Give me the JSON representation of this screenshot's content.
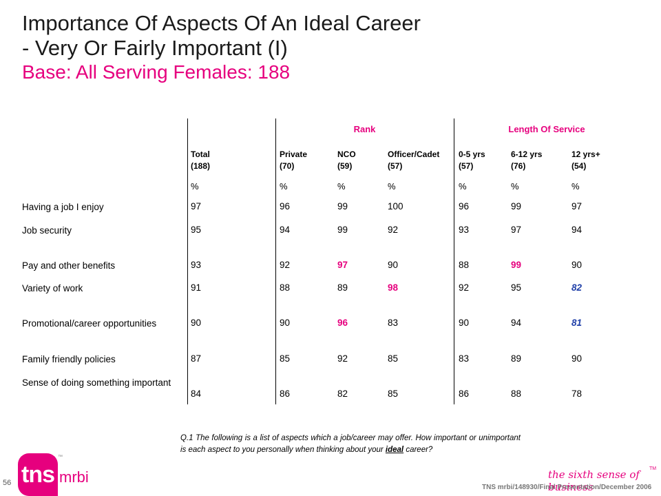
{
  "title": {
    "line1": "Importance Of Aspects Of An Ideal Career",
    "line2": "- Very Or Fairly Important (I)",
    "base": "Base:  All Serving Females:  188"
  },
  "table": {
    "group_rank": "Rank",
    "group_los": "Length Of Service",
    "columns": [
      {
        "line1": "Total",
        "line2": "(188)"
      },
      {
        "line1": "Private",
        "line2": "(70)"
      },
      {
        "line1": "NCO",
        "line2": "(59)"
      },
      {
        "line1": "Officer/Cadet",
        "line2": "(57)"
      },
      {
        "line1": "0-5 yrs",
        "line2": "(57)"
      },
      {
        "line1": "6-12 yrs",
        "line2": "(76)"
      },
      {
        "line1": "12 yrs+",
        "line2": "(54)"
      }
    ],
    "pct_symbol": "%",
    "rows": [
      {
        "label": "Having a job I enjoy",
        "values": [
          "97",
          "96",
          "99",
          "100",
          "96",
          "99",
          "97"
        ],
        "highlight": [
          "",
          "",
          "",
          "",
          "",
          "",
          ""
        ]
      },
      {
        "label": "Job security",
        "values": [
          "95",
          "94",
          "99",
          "92",
          "93",
          "97",
          "94"
        ],
        "highlight": [
          "",
          "",
          "",
          "",
          "",
          "",
          ""
        ]
      },
      {
        "label": "Pay and other benefits",
        "values": [
          "93",
          "92",
          "97",
          "90",
          "88",
          "99",
          "90"
        ],
        "highlight": [
          "",
          "",
          "pink",
          "",
          "",
          "pink",
          ""
        ]
      },
      {
        "label": "Variety of work",
        "values": [
          "91",
          "88",
          "89",
          "98",
          "92",
          "95",
          "82"
        ],
        "highlight": [
          "",
          "",
          "",
          "pink",
          "",
          "",
          "blue"
        ]
      },
      {
        "label": "Promotional/career opportunities",
        "values": [
          "90",
          "90",
          "96",
          "83",
          "90",
          "94",
          "81"
        ],
        "highlight": [
          "",
          "",
          "pink",
          "",
          "",
          "",
          "blue"
        ]
      },
      {
        "label": "Family friendly policies",
        "values": [
          "87",
          "85",
          "92",
          "85",
          "83",
          "89",
          "90"
        ],
        "highlight": [
          "",
          "",
          "",
          "",
          "",
          "",
          ""
        ]
      },
      {
        "label": "Sense of doing something important",
        "values": [
          "84",
          "86",
          "82",
          "85",
          "86",
          "88",
          "78"
        ],
        "highlight": [
          "",
          "",
          "",
          "",
          "",
          "",
          ""
        ]
      }
    ]
  },
  "question": {
    "text_before": "Q.1  The following is a list of aspects which a job/career may offer. How important or unimportant  is each aspect to you personally when thinking about your ",
    "emphasis": "ideal",
    "text_after": " career?"
  },
  "footer": {
    "page_number": "56",
    "logo_tns": "tns",
    "logo_tm": "™",
    "logo_mrbi": "mrbi",
    "tagline": "the sixth sense of business",
    "tagline_tm": "TM",
    "reference": "TNS mrbi/148930/Final Presentation/December 2006"
  },
  "colors": {
    "accent": "#e6007e",
    "highlight_blue": "#1f3fa8"
  }
}
